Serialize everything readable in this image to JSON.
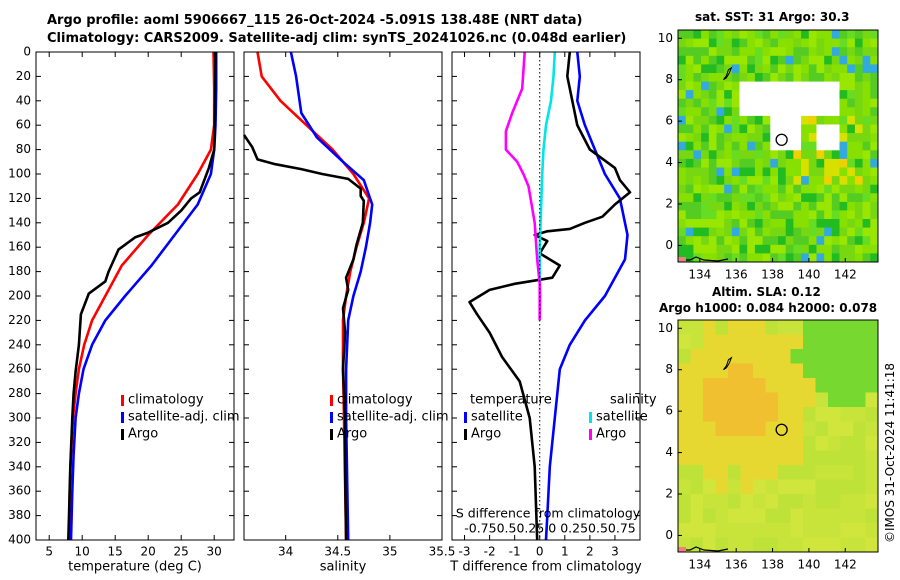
{
  "title": {
    "line1": "Argo profile: aoml 5906667_115 26-Oct-2024 -5.091S 138.48E (NRT data)",
    "line2": "Climatology: CARS2009. Satellite-adj clim: synTS_20241026.nc (0.048d earlier)"
  },
  "timestamp": "©IMOS 31-Oct-2024 11:41:18",
  "colors": {
    "climatology": "#ff0000",
    "satellite": "#0000ff",
    "argo": "#000000",
    "sal_satellite": "#00e5e5",
    "sal_argo": "#ff00ff"
  },
  "chart_data": [
    {
      "type": "line",
      "id": "temperature",
      "xlabel": "temperature (deg C)",
      "ylabel": "",
      "xlim": [
        3,
        33
      ],
      "ylim": [
        400,
        0
      ],
      "xticks": [
        5,
        10,
        15,
        20,
        25,
        30
      ],
      "yticks": [
        0,
        20,
        40,
        60,
        80,
        100,
        120,
        140,
        160,
        180,
        200,
        220,
        240,
        260,
        280,
        300,
        320,
        340,
        360,
        380,
        400
      ],
      "legend": [
        "climatology",
        "satellite-adj. clim",
        "Argo"
      ],
      "series": [
        {
          "name": "climatology",
          "color": "#ff0000",
          "points": [
            [
              29.9,
              0
            ],
            [
              30,
              30
            ],
            [
              30,
              60
            ],
            [
              29.5,
              80
            ],
            [
              27.5,
              100
            ],
            [
              24.5,
              125
            ],
            [
              20,
              150
            ],
            [
              16,
              175
            ],
            [
              13.5,
              200
            ],
            [
              11.5,
              220
            ],
            [
              10.3,
              240
            ],
            [
              9.5,
              260
            ],
            [
              9,
              280
            ],
            [
              8.6,
              300
            ],
            [
              8.3,
              330
            ],
            [
              8.1,
              360
            ],
            [
              8,
              400
            ]
          ]
        },
        {
          "name": "satellite-adj. clim",
          "color": "#0000ff",
          "points": [
            [
              30.3,
              0
            ],
            [
              30.3,
              30
            ],
            [
              30.2,
              60
            ],
            [
              30,
              80
            ],
            [
              29.5,
              100
            ],
            [
              27.5,
              125
            ],
            [
              24,
              150
            ],
            [
              20.5,
              175
            ],
            [
              16.5,
              200
            ],
            [
              13.5,
              220
            ],
            [
              11.5,
              240
            ],
            [
              10.2,
              260
            ],
            [
              9.5,
              280
            ],
            [
              9,
              300
            ],
            [
              8.7,
              330
            ],
            [
              8.5,
              360
            ],
            [
              8.3,
              400
            ]
          ]
        },
        {
          "name": "Argo",
          "color": "#000000",
          "points": [
            [
              30.2,
              0
            ],
            [
              30.1,
              50
            ],
            [
              30,
              80
            ],
            [
              29.2,
              95
            ],
            [
              28.5,
              105
            ],
            [
              27.8,
              115
            ],
            [
              26.5,
              120
            ],
            [
              25,
              130
            ],
            [
              23,
              140
            ],
            [
              20,
              148
            ],
            [
              18,
              152
            ],
            [
              15.5,
              162
            ],
            [
              14,
              180
            ],
            [
              13.5,
              188
            ],
            [
              11,
              198
            ],
            [
              9.8,
              215
            ],
            [
              9.5,
              240
            ],
            [
              9,
              262
            ],
            [
              8.7,
              280
            ],
            [
              8.5,
              300
            ],
            [
              8.2,
              340
            ],
            [
              8,
              380
            ],
            [
              7.9,
              400
            ]
          ]
        }
      ]
    },
    {
      "type": "line",
      "id": "salinity",
      "xlabel": "salinity",
      "ylabel": "",
      "xlim": [
        33.6,
        35.5
      ],
      "ylim": [
        400,
        0
      ],
      "xticks": [
        34,
        34.5,
        35,
        35.5
      ],
      "xticklabels": [
        "34",
        "34.5",
        "35",
        "35.5"
      ],
      "legend": [
        "climatology",
        "satellite-adj. clim",
        "Argo"
      ],
      "series": [
        {
          "name": "climatology",
          "color": "#ff0000",
          "points": [
            [
              33.73,
              0
            ],
            [
              33.77,
              20
            ],
            [
              33.95,
              40
            ],
            [
              34.2,
              60
            ],
            [
              34.45,
              80
            ],
            [
              34.65,
              100
            ],
            [
              34.8,
              120
            ],
            [
              34.75,
              140
            ],
            [
              34.68,
              160
            ],
            [
              34.62,
              180
            ],
            [
              34.58,
              200
            ],
            [
              34.55,
              220
            ],
            [
              34.55,
              260
            ],
            [
              34.56,
              300
            ],
            [
              34.58,
              400
            ]
          ]
        },
        {
          "name": "satellite-adj. clim",
          "color": "#0000ff",
          "points": [
            [
              34.05,
              0
            ],
            [
              34.1,
              20
            ],
            [
              34.15,
              50
            ],
            [
              34.3,
              70
            ],
            [
              34.55,
              90
            ],
            [
              34.75,
              105
            ],
            [
              34.83,
              125
            ],
            [
              34.81,
              140
            ],
            [
              34.77,
              160
            ],
            [
              34.72,
              180
            ],
            [
              34.65,
              200
            ],
            [
              34.6,
              220
            ],
            [
              34.58,
              260
            ],
            [
              34.58,
              300
            ],
            [
              34.6,
              400
            ]
          ]
        },
        {
          "name": "Argo",
          "color": "#000000",
          "points": [
            [
              33.6,
              68
            ],
            [
              33.68,
              78
            ],
            [
              33.73,
              88
            ],
            [
              33.9,
              92
            ],
            [
              34.15,
              96
            ],
            [
              34.35,
              100
            ],
            [
              34.6,
              104
            ],
            [
              34.72,
              112
            ],
            [
              34.72,
              118
            ],
            [
              34.75,
              122
            ],
            [
              34.74,
              140
            ],
            [
              34.68,
              158
            ],
            [
              34.65,
              170
            ],
            [
              34.58,
              185
            ],
            [
              34.6,
              195
            ],
            [
              34.55,
              210
            ],
            [
              34.57,
              230
            ],
            [
              34.55,
              260
            ],
            [
              34.57,
              300
            ],
            [
              34.57,
              340
            ],
            [
              34.58,
              400
            ]
          ]
        }
      ]
    },
    {
      "type": "line",
      "id": "differences",
      "xlabel": "T difference from climatology",
      "xlabel_top": "S difference from climatology",
      "xlim": [
        -3.5,
        4
      ],
      "ylim": [
        400,
        0
      ],
      "xticks": [
        -3,
        -2,
        -1,
        0,
        1,
        2,
        3
      ],
      "xticklabels": [
        "-3",
        "-2",
        "-1",
        "0",
        "1",
        "2",
        "3"
      ],
      "sticks_label": "-0.750.50.25 0 0.250.50.75",
      "legend_temperature": [
        "temperature",
        "satellite",
        "Argo"
      ],
      "legend_salinity": [
        "salinity",
        "satellite",
        "Argo"
      ],
      "series": [
        {
          "name": "T satellite",
          "color": "#0000ff",
          "points": [
            [
              1.5,
              0
            ],
            [
              1.6,
              20
            ],
            [
              1.5,
              40
            ],
            [
              1.8,
              60
            ],
            [
              2.2,
              80
            ],
            [
              2.6,
              100
            ],
            [
              3.2,
              120
            ],
            [
              3.5,
              150
            ],
            [
              3.4,
              170
            ],
            [
              2.6,
              200
            ],
            [
              1.8,
              220
            ],
            [
              1.2,
              240
            ],
            [
              0.8,
              260
            ],
            [
              0.6,
              300
            ],
            [
              0.4,
              340
            ],
            [
              0.3,
              380
            ],
            [
              0.25,
              400
            ]
          ]
        },
        {
          "name": "T Argo",
          "color": "#000000",
          "points": [
            [
              1.2,
              0
            ],
            [
              1.1,
              20
            ],
            [
              1.3,
              40
            ],
            [
              1.5,
              60
            ],
            [
              2,
              80
            ],
            [
              3,
              95
            ],
            [
              3.2,
              105
            ],
            [
              3.6,
              115
            ],
            [
              3,
              125
            ],
            [
              2.5,
              135
            ],
            [
              1.8,
              140
            ],
            [
              1.2,
              145
            ],
            [
              0.3,
              147
            ],
            [
              -0.2,
              150
            ],
            [
              0.3,
              155
            ],
            [
              0,
              165
            ],
            [
              0.8,
              175
            ],
            [
              0.5,
              185
            ],
            [
              -1,
              190
            ],
            [
              -2,
              195
            ],
            [
              -2.8,
              205
            ],
            [
              -2.5,
              215
            ],
            [
              -2,
              230
            ],
            [
              -1.5,
              250
            ],
            [
              -0.8,
              270
            ],
            [
              -0.4,
              300
            ],
            [
              -0.2,
              340
            ],
            [
              -0.1,
              400
            ]
          ]
        },
        {
          "name": "S satellite",
          "color": "#00e5e5",
          "points": [
            [
              0.6,
              0
            ],
            [
              0.55,
              20
            ],
            [
              0.45,
              40
            ],
            [
              0.25,
              60
            ],
            [
              0.15,
              80
            ],
            [
              0.1,
              100
            ],
            [
              0.05,
              130
            ],
            [
              0,
              160
            ],
            [
              0,
              180
            ],
            [
              0.02,
              200
            ],
            [
              0,
              220
            ]
          ]
        },
        {
          "name": "S Argo",
          "color": "#ff00ff",
          "points": [
            [
              -0.6,
              0
            ],
            [
              -0.7,
              30
            ],
            [
              -1.1,
              50
            ],
            [
              -1.35,
              65
            ],
            [
              -1.35,
              80
            ],
            [
              -0.9,
              90
            ],
            [
              -0.65,
              100
            ],
            [
              -0.45,
              110
            ],
            [
              -0.2,
              140
            ],
            [
              -0.1,
              170
            ],
            [
              0,
              190
            ],
            [
              0,
              220
            ]
          ]
        }
      ]
    },
    {
      "type": "heatmap",
      "id": "sst",
      "title": "sat. SST: 31 Argo: 30.3",
      "xticks": [
        134,
        136,
        138,
        140,
        142
      ],
      "yticks": [
        0,
        2,
        4,
        6,
        8,
        10
      ],
      "xlim": [
        132.8,
        143.8
      ],
      "ylim": [
        -0.8,
        10.4
      ],
      "marker": {
        "lon": 138.5,
        "lat": 5.1
      }
    },
    {
      "type": "heatmap",
      "id": "sla",
      "title": "Altim. SLA: 0.12",
      "subtitle": "Argo h1000: 0.084 h2000: 0.078",
      "xticks": [
        134,
        136,
        138,
        140,
        142
      ],
      "yticks": [
        0,
        2,
        4,
        6,
        8,
        10
      ],
      "xlim": [
        132.8,
        143.8
      ],
      "ylim": [
        -0.8,
        10.4
      ],
      "marker": {
        "lon": 138.5,
        "lat": 5.1
      }
    }
  ]
}
